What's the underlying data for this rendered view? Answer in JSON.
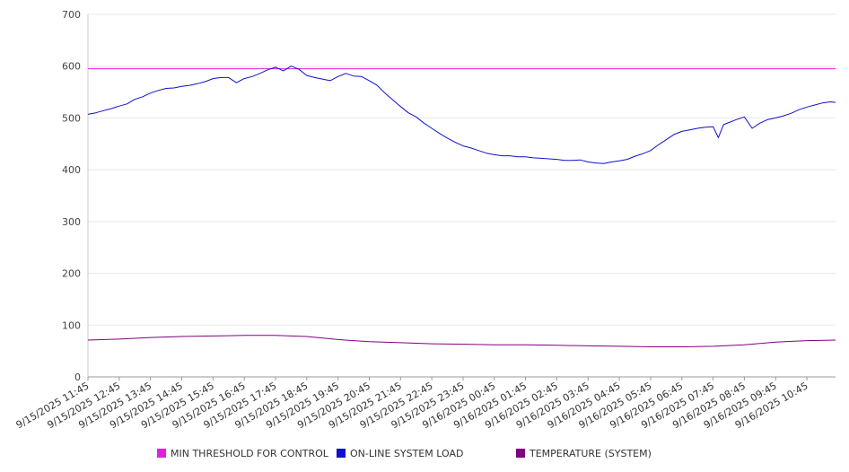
{
  "chart_data": {
    "type": "line",
    "title": "",
    "xlabel": "",
    "ylabel": "",
    "ylim": [
      0,
      700
    ],
    "y_ticks": [
      0,
      100,
      200,
      300,
      400,
      500,
      600,
      700
    ],
    "x_ticks": [
      "9/15/2025 11:45",
      "9/15/2025 12:45",
      "9/15/2025 13:45",
      "9/15/2025 14:45",
      "9/15/2025 15:45",
      "9/15/2025 16:45",
      "9/15/2025 17:45",
      "9/15/2025 18:45",
      "9/15/2025 19:45",
      "9/15/2025 20:45",
      "9/15/2025 21:45",
      "9/15/2025 22:45",
      "9/15/2025 23:45",
      "9/16/2025 00:45",
      "9/16/2025 01:45",
      "9/16/2025 02:45",
      "9/16/2025 03:45",
      "9/16/2025 04:45",
      "9/16/2025 05:45",
      "9/16/2025 06:45",
      "9/16/2025 07:45",
      "9/16/2025 08:45",
      "9/16/2025 09:45",
      "9/16/2025 10:45"
    ],
    "x_start": "9/15/2025 11:45",
    "x_end": "9/16/2025 11:40",
    "grid": true,
    "legend_position": "bottom",
    "series": [
      {
        "name": "MIN THRESHOLD FOR CONTROL",
        "color": "#e020e0",
        "points": [
          [
            "9/15/2025 11:45",
            595
          ],
          [
            "9/16/2025 11:40",
            595
          ]
        ]
      },
      {
        "name": "ON-LINE SYSTEM LOAD",
        "color": "#1010cc",
        "points": [
          [
            "9/15/2025 11:45",
            507
          ],
          [
            "9/15/2025 12:00",
            510
          ],
          [
            "9/15/2025 12:15",
            514
          ],
          [
            "9/15/2025 12:30",
            518
          ],
          [
            "9/15/2025 12:45",
            523
          ],
          [
            "9/15/2025 13:00",
            527
          ],
          [
            "9/15/2025 13:15",
            536
          ],
          [
            "9/15/2025 13:30",
            541
          ],
          [
            "9/15/2025 13:45",
            548
          ],
          [
            "9/15/2025 14:00",
            553
          ],
          [
            "9/15/2025 14:15",
            557
          ],
          [
            "9/15/2025 14:30",
            558
          ],
          [
            "9/15/2025 14:45",
            561
          ],
          [
            "9/15/2025 15:00",
            563
          ],
          [
            "9/15/2025 15:15",
            566
          ],
          [
            "9/15/2025 15:30",
            570
          ],
          [
            "9/15/2025 15:45",
            576
          ],
          [
            "9/15/2025 16:00",
            578
          ],
          [
            "9/15/2025 16:15",
            578
          ],
          [
            "9/15/2025 16:30",
            568
          ],
          [
            "9/15/2025 16:45",
            576
          ],
          [
            "9/15/2025 17:00",
            580
          ],
          [
            "9/15/2025 17:15",
            586
          ],
          [
            "9/15/2025 17:30",
            593
          ],
          [
            "9/15/2025 17:45",
            598
          ],
          [
            "9/15/2025 18:00",
            591
          ],
          [
            "9/15/2025 18:15",
            600
          ],
          [
            "9/15/2025 18:30",
            594
          ],
          [
            "9/15/2025 18:45",
            582
          ],
          [
            "9/15/2025 19:00",
            578
          ],
          [
            "9/15/2025 19:15",
            575
          ],
          [
            "9/15/2025 19:30",
            572
          ],
          [
            "9/15/2025 19:45",
            580
          ],
          [
            "9/15/2025 20:00",
            586
          ],
          [
            "9/15/2025 20:15",
            581
          ],
          [
            "9/15/2025 20:30",
            580
          ],
          [
            "9/15/2025 20:45",
            572
          ],
          [
            "9/15/2025 21:00",
            563
          ],
          [
            "9/15/2025 21:15",
            548
          ],
          [
            "9/15/2025 21:30",
            535
          ],
          [
            "9/15/2025 21:45",
            522
          ],
          [
            "9/15/2025 22:00",
            510
          ],
          [
            "9/15/2025 22:15",
            502
          ],
          [
            "9/15/2025 22:30",
            490
          ],
          [
            "9/15/2025 22:45",
            480
          ],
          [
            "9/15/2025 23:00",
            470
          ],
          [
            "9/15/2025 23:15",
            461
          ],
          [
            "9/15/2025 23:30",
            453
          ],
          [
            "9/15/2025 23:45",
            446
          ],
          [
            "9/16/2025 00:00",
            442
          ],
          [
            "9/16/2025 00:15",
            437
          ],
          [
            "9/16/2025 00:30",
            432
          ],
          [
            "9/16/2025 00:45",
            429
          ],
          [
            "9/16/2025 01:00",
            427
          ],
          [
            "9/16/2025 01:15",
            427
          ],
          [
            "9/16/2025 01:30",
            425
          ],
          [
            "9/16/2025 01:45",
            425
          ],
          [
            "9/16/2025 02:00",
            423
          ],
          [
            "9/16/2025 02:15",
            422
          ],
          [
            "9/16/2025 02:30",
            421
          ],
          [
            "9/16/2025 02:45",
            420
          ],
          [
            "9/16/2025 03:00",
            418
          ],
          [
            "9/16/2025 03:15",
            418
          ],
          [
            "9/16/2025 03:30",
            419
          ],
          [
            "9/16/2025 03:45",
            415
          ],
          [
            "9/16/2025 04:00",
            413
          ],
          [
            "9/16/2025 04:15",
            412
          ],
          [
            "9/16/2025 04:30",
            415
          ],
          [
            "9/16/2025 04:45",
            417
          ],
          [
            "9/16/2025 05:00",
            420
          ],
          [
            "9/16/2025 05:15",
            426
          ],
          [
            "9/16/2025 05:30",
            431
          ],
          [
            "9/16/2025 05:45",
            437
          ],
          [
            "9/16/2025 06:00",
            448
          ],
          [
            "9/16/2025 06:15",
            458
          ],
          [
            "9/16/2025 06:30",
            468
          ],
          [
            "9/16/2025 06:45",
            474
          ],
          [
            "9/16/2025 07:00",
            477
          ],
          [
            "9/16/2025 07:15",
            480
          ],
          [
            "9/16/2025 07:30",
            482
          ],
          [
            "9/16/2025 07:45",
            483
          ],
          [
            "9/16/2025 07:55",
            462
          ],
          [
            "9/16/2025 08:05",
            487
          ],
          [
            "9/16/2025 08:15",
            491
          ],
          [
            "9/16/2025 08:30",
            497
          ],
          [
            "9/16/2025 08:45",
            502
          ],
          [
            "9/16/2025 09:00",
            480
          ],
          [
            "9/16/2025 09:15",
            490
          ],
          [
            "9/16/2025 09:30",
            497
          ],
          [
            "9/16/2025 09:45",
            500
          ],
          [
            "9/16/2025 10:00",
            504
          ],
          [
            "9/16/2025 10:15",
            509
          ],
          [
            "9/16/2025 10:30",
            516
          ],
          [
            "9/16/2025 10:45",
            521
          ],
          [
            "9/16/2025 11:00",
            525
          ],
          [
            "9/16/2025 11:15",
            529
          ],
          [
            "9/16/2025 11:30",
            531
          ],
          [
            "9/16/2025 11:40",
            530
          ]
        ]
      },
      {
        "name": "TEMPERATURE (SYSTEM)",
        "color": "#800080",
        "points": [
          [
            "9/15/2025 11:45",
            71
          ],
          [
            "9/15/2025 12:45",
            73
          ],
          [
            "9/15/2025 13:45",
            76
          ],
          [
            "9/15/2025 14:45",
            78
          ],
          [
            "9/15/2025 15:45",
            79
          ],
          [
            "9/15/2025 16:45",
            80
          ],
          [
            "9/15/2025 17:45",
            80
          ],
          [
            "9/15/2025 18:45",
            78
          ],
          [
            "9/15/2025 19:45",
            72
          ],
          [
            "9/15/2025 20:45",
            68
          ],
          [
            "9/15/2025 21:45",
            66
          ],
          [
            "9/15/2025 22:45",
            64
          ],
          [
            "9/15/2025 23:45",
            63
          ],
          [
            "9/16/2025 00:45",
            62
          ],
          [
            "9/16/2025 01:45",
            62
          ],
          [
            "9/16/2025 02:45",
            61
          ],
          [
            "9/16/2025 03:45",
            60
          ],
          [
            "9/16/2025 04:45",
            59
          ],
          [
            "9/16/2025 05:45",
            58
          ],
          [
            "9/16/2025 06:45",
            58
          ],
          [
            "9/16/2025 07:45",
            59
          ],
          [
            "9/16/2025 08:45",
            62
          ],
          [
            "9/16/2025 09:45",
            67
          ],
          [
            "9/16/2025 10:45",
            70
          ],
          [
            "9/16/2025 11:40",
            71
          ]
        ]
      }
    ]
  }
}
